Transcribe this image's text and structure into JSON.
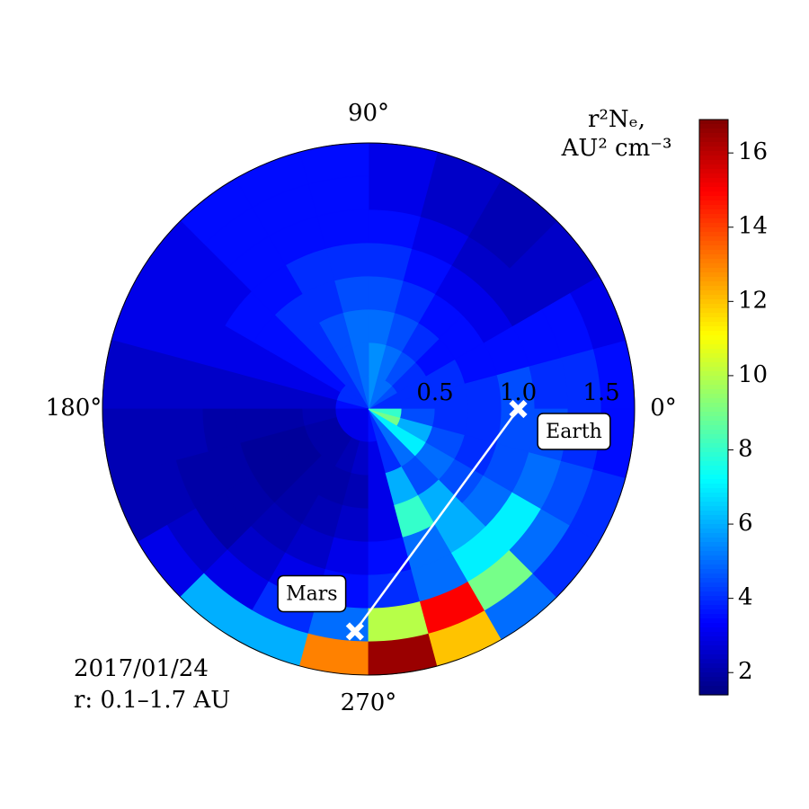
{
  "chart_data": {
    "type": "polar-heatmap",
    "colorbar_label": [
      "r²Nₑ,",
      "AU² cm⁻³"
    ],
    "annotations": [
      "2017/01/24",
      "r: 0.1–1.7 AU"
    ],
    "colormap": "jet",
    "r_edges": [
      0.1,
      0.3,
      0.5,
      0.7,
      0.9,
      1.1,
      1.3,
      1.5,
      1.7
    ],
    "theta_edges": [
      0,
      15,
      30,
      45,
      60,
      75,
      90,
      105,
      120,
      135,
      150,
      165,
      180,
      195,
      210,
      225,
      240,
      255,
      270,
      285,
      300,
      315,
      330,
      345,
      360
    ],
    "values": [
      [
        4,
        4,
        4.5,
        5,
        5,
        5.5,
        5,
        4.5,
        4,
        4,
        4,
        3.5,
        3,
        3,
        3,
        3,
        3,
        3,
        3.5,
        4,
        5,
        7,
        9,
        8
      ],
      [
        4,
        4,
        4,
        4.5,
        5,
        5.5,
        5,
        4.5,
        4,
        3.5,
        3,
        2.5,
        2.2,
        2,
        2,
        2,
        2.2,
        2.5,
        3,
        4,
        5,
        7,
        6,
        4.5
      ],
      [
        4,
        4,
        3.5,
        4,
        4.5,
        5,
        5,
        4.5,
        4,
        3.5,
        3,
        2.5,
        2,
        1.8,
        1.8,
        2,
        2,
        2.2,
        3,
        6,
        4.5,
        5,
        4.5,
        4
      ],
      [
        4,
        3.5,
        3.5,
        3.5,
        4,
        4.5,
        4.5,
        4,
        4,
        3.5,
        3,
        2.5,
        2,
        1.8,
        1.8,
        2,
        2.2,
        2.5,
        3,
        8,
        6,
        4.5,
        4,
        4
      ],
      [
        4.5,
        3.5,
        3,
        3,
        3.5,
        4,
        4,
        4,
        3.5,
        3.5,
        3,
        2.5,
        2,
        2,
        2,
        2.2,
        2.5,
        3,
        3.5,
        5,
        6,
        5,
        4.5,
        4.5
      ],
      [
        4,
        3.5,
        2.5,
        2.5,
        3,
        3.5,
        3.5,
        3.5,
        3.5,
        3,
        3,
        2.5,
        2.2,
        2,
        2,
        2.5,
        3,
        3.5,
        4,
        5,
        7,
        7,
        5,
        4.5
      ],
      [
        4,
        3.5,
        2.5,
        2.2,
        2.5,
        3,
        3.5,
        3.5,
        3.5,
        3,
        3,
        2.5,
        2.2,
        2.2,
        2.5,
        3,
        4,
        5,
        10,
        15,
        9,
        5,
        4.5,
        4
      ],
      [
        3.5,
        3,
        2.5,
        2.2,
        2.5,
        3,
        3.5,
        3.5,
        3.5,
        3,
        3,
        2.5,
        2.2,
        2.2,
        3,
        6,
        6,
        13,
        16.5,
        12,
        5,
        4,
        4,
        3.5
      ]
    ],
    "rlim": [
      0.1,
      1.7
    ],
    "rticks": [
      0.5,
      {
        "value": 1,
        "label": "1.0"
      },
      1.5
    ],
    "thetaticks": [
      {
        "value": 0,
        "label": "0°"
      },
      {
        "value": 90,
        "label": "90°"
      },
      {
        "value": 180,
        "label": "180°"
      },
      {
        "value": 270,
        "label": "270°"
      }
    ],
    "clim": [
      1.4,
      16.9
    ],
    "cticks": [
      2,
      4,
      6,
      8,
      10,
      12,
      14,
      16
    ],
    "points": [
      {
        "label": "Earth",
        "r": 1.0,
        "theta": 0
      },
      {
        "label": "Mars",
        "r": 1.44,
        "theta": 266.5
      }
    ],
    "point_color": "#ffffff"
  }
}
